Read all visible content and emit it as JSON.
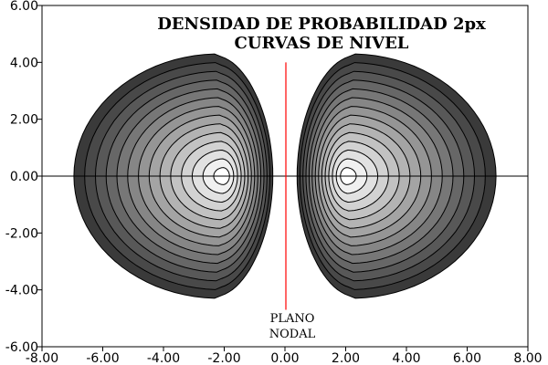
{
  "chart_data": {
    "type": "contour",
    "title": "DENSIDAD DE PROBABILIDAD 2px",
    "subtitle": "CURVAS DE NIVEL",
    "xlabel": "",
    "ylabel": "",
    "xlim": [
      -8,
      8
    ],
    "ylim": [
      -6,
      6
    ],
    "x_ticks": [
      -8,
      -6,
      -4,
      -2,
      0,
      2,
      4,
      6,
      8
    ],
    "x_tick_labels": [
      "-8.00",
      "-6.00",
      "-4.00",
      "-2.00",
      "0.00",
      "2.00",
      "4.00",
      "6.00",
      "8.00"
    ],
    "y_ticks": [
      -6,
      -4,
      -2,
      0,
      2,
      4,
      6
    ],
    "y_tick_labels": [
      "-6.00",
      "-4.00",
      "-2.00",
      "0.00",
      "2.00",
      "4.00",
      "6.00"
    ],
    "lobe_centers": [
      [
        -2.0,
        0.0
      ],
      [
        2.0,
        0.0
      ]
    ],
    "contour_levels": 14,
    "nodal_plane": {
      "x": 0.0,
      "y_range": [
        -4.7,
        4.0
      ],
      "label_lines": [
        "PLANO",
        "NODAL"
      ],
      "color": "#ff0000"
    },
    "axis_line_color": "#000000",
    "fill_dark": "#3a3a3a",
    "fill_light": "#ffffff",
    "grid": false
  }
}
